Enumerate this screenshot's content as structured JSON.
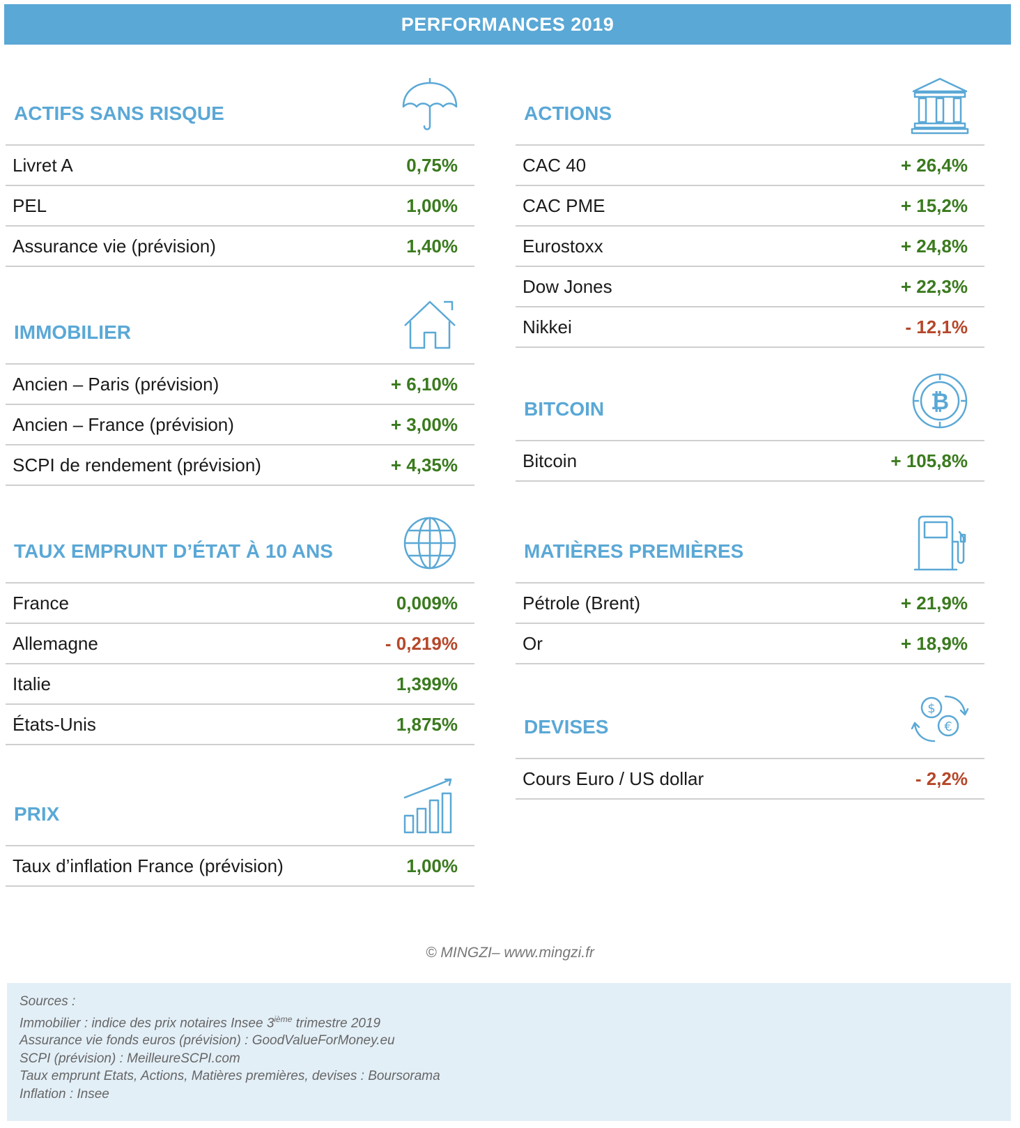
{
  "banner": {
    "title": "PERFORMANCES 2019"
  },
  "colors": {
    "accent": "#5aa8d6",
    "positive": "#3a7a1e",
    "negative": "#b5472a",
    "sources_bg": "#e3eff7"
  },
  "sections": {
    "actifs": {
      "title": "ACTIFS SANS RISQUE",
      "icon": "umbrella-icon",
      "rows": [
        {
          "label": "Livret A",
          "value": "0,75%"
        },
        {
          "label": "PEL",
          "value": "1,00%"
        },
        {
          "label": "Assurance vie (prévision)",
          "value": "1,40%"
        }
      ]
    },
    "immobilier": {
      "title": "IMMOBILIER",
      "icon": "house-icon",
      "rows": [
        {
          "label": "Ancien – Paris (prévision)",
          "value": "+ 6,10%"
        },
        {
          "label": "Ancien – France (prévision)",
          "value": "+ 3,00%"
        },
        {
          "label": "SCPI de rendement (prévision)",
          "value": "+ 4,35%"
        }
      ]
    },
    "taux": {
      "title": "TAUX EMPRUNT D’ÉTAT À 10 ANS",
      "icon": "globe-icon",
      "rows": [
        {
          "label": "France",
          "value": "0,009%"
        },
        {
          "label": "Allemagne",
          "value": "- 0,219%"
        },
        {
          "label": "Italie",
          "value": "1,399%"
        },
        {
          "label": "États-Unis",
          "value": "1,875%"
        }
      ]
    },
    "prix": {
      "title": "PRIX",
      "icon": "bar-chart-growth-icon",
      "rows": [
        {
          "label": "Taux d’inflation France (prévision)",
          "value": "1,00%"
        }
      ]
    },
    "actions": {
      "title": "ACTIONS",
      "icon": "bank-building-icon",
      "rows": [
        {
          "label": "CAC 40",
          "value": "+ 26,4%"
        },
        {
          "label": "CAC PME",
          "value": "+ 15,2%"
        },
        {
          "label": "Eurostoxx",
          "value": "+ 24,8%"
        },
        {
          "label": "Dow Jones",
          "value": "+ 22,3%"
        },
        {
          "label": "Nikkei",
          "value": "- 12,1%"
        }
      ]
    },
    "bitcoin": {
      "title": "BITCOIN",
      "icon": "bitcoin-icon",
      "rows": [
        {
          "label": "Bitcoin",
          "value": "+ 105,8%"
        }
      ]
    },
    "matieres": {
      "title": "MATIÈRES PREMIÈRES",
      "icon": "fuel-pump-icon",
      "rows": [
        {
          "label": "Pétrole (Brent)",
          "value": "+ 21,9%"
        },
        {
          "label": "Or",
          "value": "+ 18,9%"
        }
      ]
    },
    "devises": {
      "title": "DEVISES",
      "icon": "currency-exchange-icon",
      "rows": [
        {
          "label": "Cours Euro / US dollar",
          "value": "- 2,2%"
        }
      ]
    }
  },
  "copyright": "© MINGZI– www.mingzi.fr",
  "sources": {
    "heading": "Sources :",
    "immobilier_prefix": "Immobilier : indice des prix notaires Insee 3",
    "immobilier_sup": "ième",
    "immobilier_suffix": " trimestre 2019",
    "assurance": "Assurance vie fonds euros (prévision) : GoodValueForMoney.eu",
    "scpi": "SCPI (prévision) :  MeilleureSCPI.com",
    "taux": "Taux emprunt Etats, Actions, Matières premières, devises : Boursorama",
    "inflation": "Inflation : Insee"
  }
}
